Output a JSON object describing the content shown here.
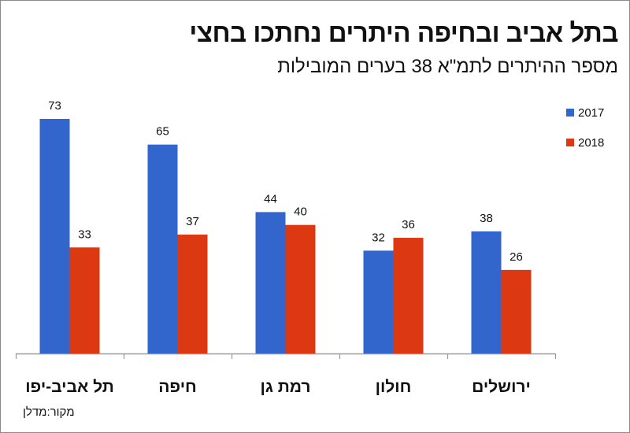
{
  "chart_data": {
    "type": "bar",
    "title": "בתל אביב ובחיפה היתרים נחתכו בחצי",
    "subtitle": "מספר ההיתרים לתמ\"א 38 בערים המובילות",
    "source": "מקור:מדלן",
    "categories": [
      "תל אביב-יפו",
      "חיפה",
      "רמת גן",
      "חולון",
      "ירושלים"
    ],
    "series": [
      {
        "name": "2017",
        "color": "#3366cc",
        "values": [
          73,
          65,
          44,
          32,
          38
        ]
      },
      {
        "name": "2018",
        "color": "#dc3912",
        "values": [
          33,
          37,
          40,
          36,
          26
        ]
      }
    ],
    "xlabel": "",
    "ylabel": "",
    "ylim": [
      0,
      80
    ],
    "grid": false,
    "legend_position": "top-right",
    "data_labels": true
  }
}
